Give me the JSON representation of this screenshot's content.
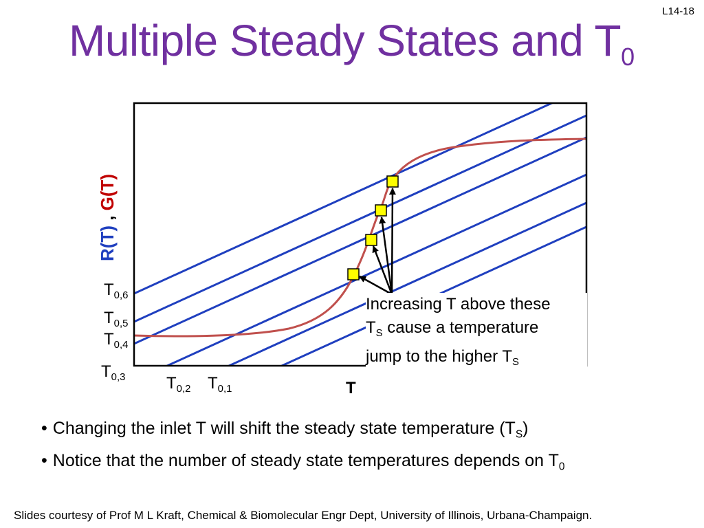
{
  "slide_number": "L14-18",
  "title": {
    "text": "Multiple Steady States and T",
    "subscript": "0"
  },
  "diagram": {
    "y_axis_label": {
      "part1": "R(T)",
      "separator": " , ",
      "part2": "G(T)"
    },
    "x_axis_label": "T",
    "line_labels": [
      {
        "id": "t06",
        "main": "T",
        "sub": "0,6"
      },
      {
        "id": "t05",
        "main": "T",
        "sub": "0,5"
      },
      {
        "id": "t04",
        "main": "T",
        "sub": "0,4"
      },
      {
        "id": "t03",
        "main": "T",
        "sub": "0,3"
      },
      {
        "id": "t02",
        "main": "T",
        "sub": "0,2"
      },
      {
        "id": "t01",
        "main": "T",
        "sub": "0,1"
      }
    ],
    "annotation": {
      "line1": "Increasing T above these",
      "line2_main": "T",
      "line2_sub": "S",
      "line2_rest": " cause a temperature",
      "line3_main": "jump to the higher T",
      "line3_sub": "S"
    },
    "colors": {
      "removal_lines": "#1f3fbf",
      "generation_curve": "#c0504d",
      "steady_state_markers": "#ffff00",
      "y_label_r": "#1f3fbf",
      "y_label_g": "#c00000",
      "title": "#7030a0"
    }
  },
  "bullets": [
    {
      "text": "Changing the inlet T will shift the steady state temperature (T",
      "sub": "S",
      "tail": ")"
    },
    {
      "text": "Notice that the number of steady state temperatures depends on T",
      "sub": "0",
      "tail": ""
    }
  ],
  "footer": "Slides courtesy of Prof M L Kraft, Chemical & Biomolecular Engr Dept, University of Illinois, Urbana-Champaign."
}
